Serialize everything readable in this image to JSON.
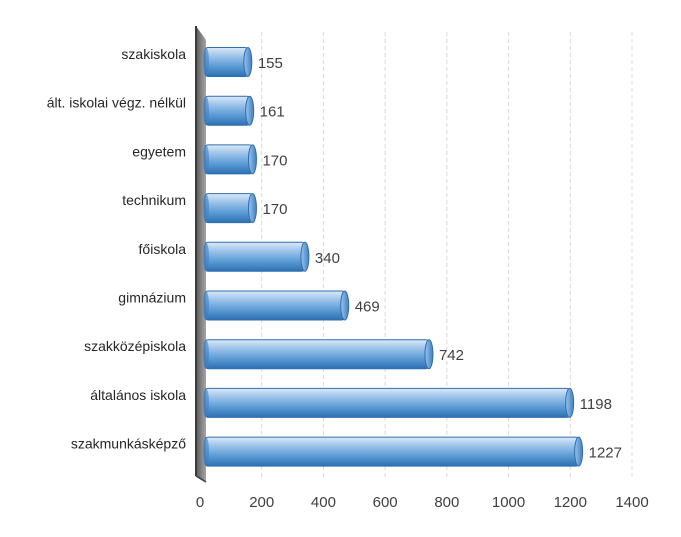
{
  "chart_data": {
    "type": "bar",
    "orientation": "horizontal",
    "title": "",
    "xlabel": "",
    "ylabel": "",
    "categories": [
      "szakiskola",
      "ált. iskolai végz. nélkül",
      "egyetem",
      "technikum",
      "főiskola",
      "gimnázium",
      "szakközépiskola",
      "általános iskola",
      "szakmunkásképző"
    ],
    "values": [
      155,
      161,
      170,
      170,
      340,
      469,
      742,
      1198,
      1227
    ],
    "value_labels": [
      "155",
      "161",
      "170",
      "170",
      "340",
      "469",
      "742",
      "1198",
      "1227"
    ],
    "xlim": [
      0,
      1400
    ],
    "xticks": [
      "0",
      "200",
      "400",
      "600",
      "800",
      "1000",
      "1200",
      "1400"
    ],
    "grid": true,
    "legend": "none",
    "colors": {
      "bar": "#5b9bd5",
      "bar_light": "#bdd7ee",
      "bar_dark": "#2e75b6",
      "wall": "#7f7f7f"
    }
  }
}
